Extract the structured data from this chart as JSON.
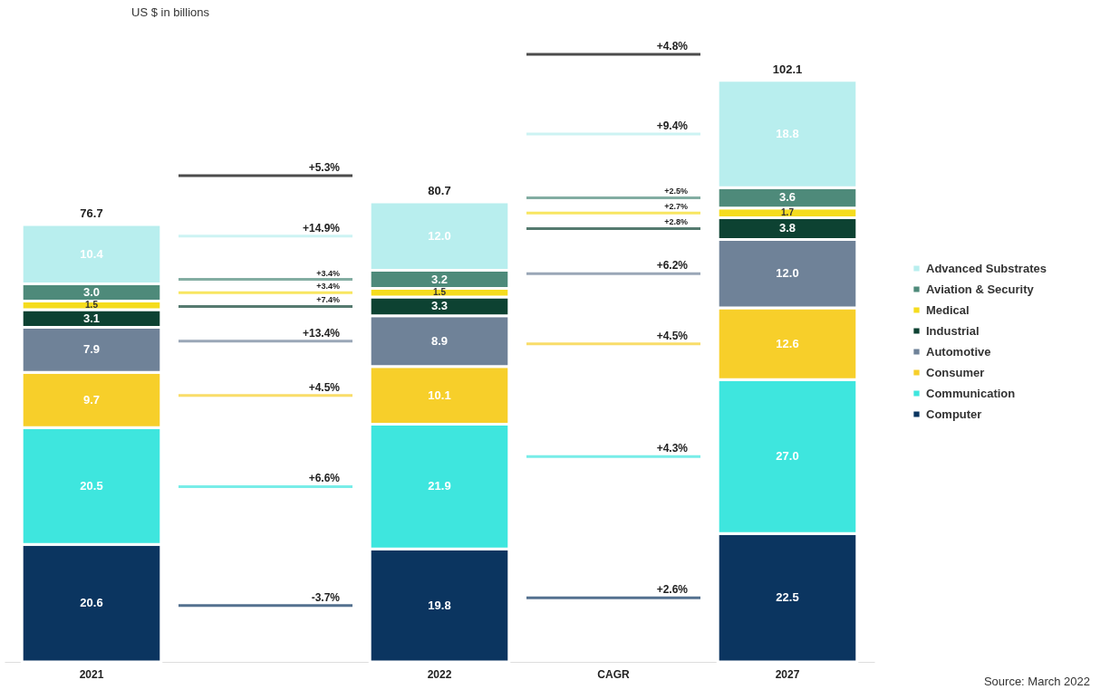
{
  "chart_data": {
    "type": "bar",
    "stacked": true,
    "subtitle": "US $ in billions",
    "categories": [
      "2021",
      null,
      "2022",
      "CAGR",
      "2027"
    ],
    "series": [
      {
        "name": "Computer",
        "color": "#0b3560",
        "values": [
          20.6,
          null,
          19.8,
          null,
          22.5
        ],
        "value_labels": [
          "20.6",
          null,
          "19.8",
          null,
          "22.5"
        ]
      },
      {
        "name": "Communication",
        "color": "#3ee6de",
        "values": [
          20.5,
          null,
          21.9,
          null,
          27.0
        ],
        "value_labels": [
          "20.5",
          null,
          "21.9",
          null,
          "27.0"
        ]
      },
      {
        "name": "Consumer",
        "color": "#f7cf2a",
        "values": [
          9.7,
          null,
          10.1,
          null,
          12.6
        ],
        "value_labels": [
          "9.7",
          null,
          "10.1",
          null,
          "12.6"
        ]
      },
      {
        "name": "Automotive",
        "color": "#6f8298",
        "values": [
          7.9,
          null,
          8.9,
          null,
          12.0
        ],
        "value_labels": [
          "7.9",
          null,
          "8.9",
          null,
          "12.0"
        ]
      },
      {
        "name": "Industrial",
        "color": "#0d4232",
        "values": [
          3.1,
          null,
          3.3,
          null,
          3.8
        ],
        "value_labels": [
          "3.1",
          null,
          "3.3",
          null,
          "3.8"
        ]
      },
      {
        "name": "Medical",
        "color": "#f5dc1e",
        "values": [
          1.5,
          null,
          1.5,
          null,
          1.7
        ],
        "value_labels": [
          "1.5",
          null,
          "1.5",
          null,
          "1.7"
        ]
      },
      {
        "name": "Aviation & Security",
        "color": "#4e8a7a",
        "values": [
          3.0,
          null,
          3.2,
          null,
          3.6
        ],
        "value_labels": [
          "3.0",
          null,
          "3.2",
          null,
          "3.6"
        ]
      },
      {
        "name": "Advanced Substrates",
        "color": "#b8eeee",
        "values": [
          10.4,
          null,
          12.0,
          null,
          18.8
        ],
        "value_labels": [
          "10.4",
          null,
          "12.0",
          null,
          "18.8"
        ]
      }
    ],
    "totals": [
      "76.7",
      null,
      "80.7",
      null,
      "102.1"
    ],
    "legend": "right",
    "annotations": [
      "+5.3%",
      "-3.7%",
      "+6.6%",
      "+4.5%",
      "+13.4%",
      "+7.4%",
      "+3.4%",
      "+3.4%",
      "+14.9%",
      "+4.8%",
      "+2.6%",
      "+4.3%",
      "+4.5%",
      "+6.2%",
      "+2.8%",
      "+2.7%",
      "+2.5%",
      "+9.4%",
      "Source: March 2022"
    ]
  }
}
